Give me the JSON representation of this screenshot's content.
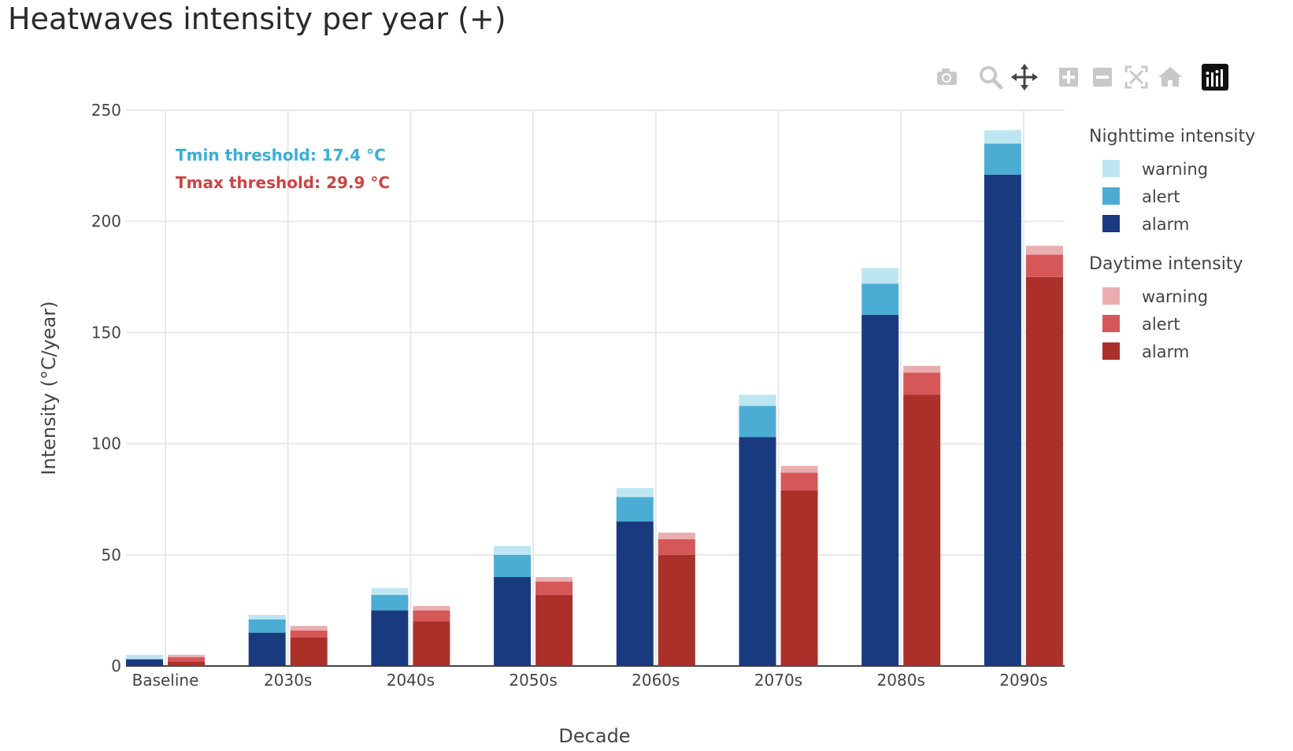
{
  "title": "Heatwaves intensity per year (+)",
  "modebar": {
    "icons": [
      "camera-icon",
      "zoom-icon",
      "pan-icon",
      "zoom-in-icon",
      "zoom-out-icon",
      "autoscale-icon",
      "reset-axes-icon",
      "plotly-logo-icon"
    ]
  },
  "chart_data": {
    "type": "bar",
    "barmode": "group-stacked",
    "categories": [
      "Baseline",
      "2030s",
      "2040s",
      "2050s",
      "2060s",
      "2070s",
      "2080s",
      "2090s"
    ],
    "xlabel": "Decade",
    "ylabel": "Intensity (°C/year)",
    "ylim": [
      0,
      250
    ],
    "yticks": [
      0,
      50,
      100,
      150,
      200,
      250
    ],
    "grid": true,
    "legend_position": "right",
    "groups": [
      {
        "name": "Nighttime intensity",
        "series": [
          {
            "name": "alarm",
            "color": "#1a3a80",
            "values": [
              3,
              15,
              25,
              40,
              65,
              103,
              158,
              221
            ]
          },
          {
            "name": "alert",
            "color": "#4cadd4",
            "values": [
              0,
              6,
              7,
              10,
              11,
              14,
              14,
              14
            ]
          },
          {
            "name": "warning",
            "color": "#bde6f2",
            "values": [
              2,
              2,
              3,
              4,
              4,
              5,
              7,
              6
            ]
          }
        ]
      },
      {
        "name": "Daytime intensity",
        "series": [
          {
            "name": "alarm",
            "color": "#ab302a",
            "values": [
              2,
              13,
              20,
              32,
              50,
              79,
              122,
              175
            ]
          },
          {
            "name": "alert",
            "color": "#d55758",
            "values": [
              2,
              3,
              5,
              6,
              7,
              8,
              10,
              10
            ]
          },
          {
            "name": "warning",
            "color": "#eaaeb0",
            "values": [
              1,
              2,
              2,
              2,
              3,
              3,
              3,
              4
            ]
          }
        ]
      }
    ],
    "annotations": [
      {
        "text": "Tmin threshold: 17.4 °C",
        "color": "#3aaed8"
      },
      {
        "text": "Tmax threshold: 29.9 °C",
        "color": "#cc4444"
      }
    ]
  }
}
